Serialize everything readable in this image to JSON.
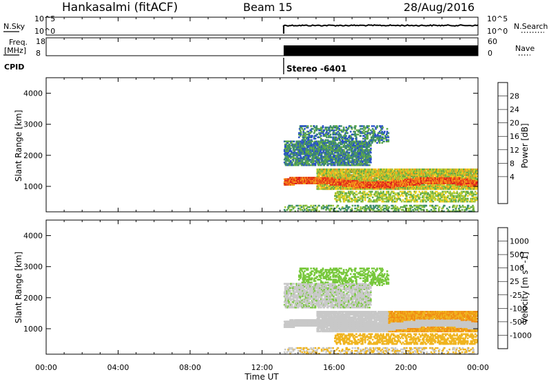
{
  "header": {
    "station": "Hankasalmi (fitACF)",
    "beam": "Beam 15",
    "date": "28/Aug/2016"
  },
  "info_panels": {
    "nsky_label": "N.Sky",
    "nsky_ticks": [
      "10^5",
      "10^0"
    ],
    "nsearch_label": "N.Search",
    "nsearch_ticks": [
      "10^5",
      "10^0"
    ],
    "freq_label_1": "Freq.",
    "freq_label_2": "[MHz]",
    "freq_ticks": [
      "18",
      "8"
    ],
    "nave_label": "Nave",
    "nave_ticks": [
      "60",
      "0"
    ],
    "cpid_label": "CPID",
    "cpid_value": "Stereo -6401",
    "data_start_hour": 13.2
  },
  "chart_data": [
    {
      "type": "heatmap",
      "name": "power",
      "ylabel": "Slant Range [km]",
      "ylim": [
        180,
        4500
      ],
      "xlim": [
        0,
        24
      ],
      "yticks": [
        1000,
        2000,
        3000,
        4000
      ],
      "colorbar": {
        "label": "Power [dB]",
        "range": [
          0,
          32
        ],
        "ticks": [
          "28",
          "24",
          "20",
          "16",
          "12",
          "8",
          "4"
        ],
        "colors": [
          "#1e1ef0",
          "#2850c8",
          "#3c8c6e",
          "#5faa46",
          "#a0c83c",
          "#f0d21e",
          "#f5a01e",
          "#f05a14",
          "#dc1e1e"
        ]
      }
    },
    {
      "type": "heatmap",
      "name": "velocity",
      "ylabel": "Slant Range [km]",
      "ylim": [
        180,
        4500
      ],
      "xlim": [
        0,
        24
      ],
      "yticks": [
        1000,
        2000,
        3000,
        4000
      ],
      "colorbar": {
        "label": "Velocity [m s^-1]",
        "ticks": [
          "1000",
          "500",
          "100",
          "25",
          "-25",
          "-100",
          "-500",
          "-1000"
        ],
        "colors": [
          "#1e3cc8",
          "#2878b4",
          "#3c9650",
          "#78c83c",
          "#c8c8c8",
          "#f0b41e",
          "#f08c14",
          "#f05a14",
          "#e61e1e"
        ]
      }
    }
  ],
  "xaxis": {
    "label": "Time UT",
    "ticks": [
      "00:00",
      "04:00",
      "08:00",
      "12:00",
      "16:00",
      "20:00",
      "00:00"
    ]
  }
}
